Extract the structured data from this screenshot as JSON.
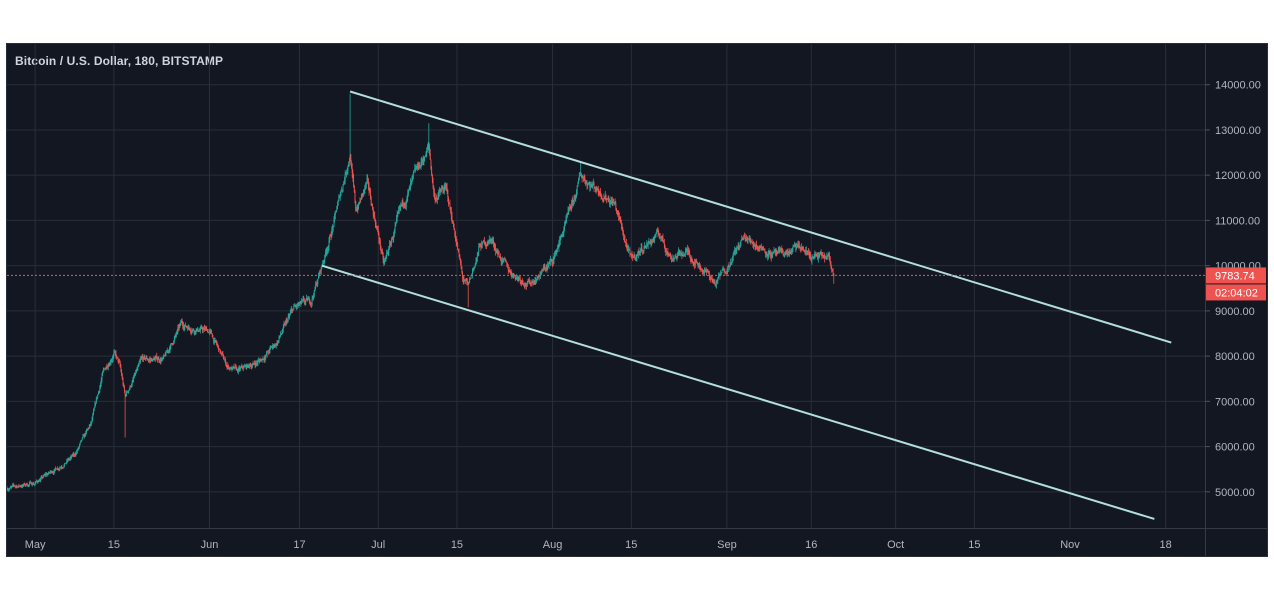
{
  "header": {
    "title": "Bitcoin / U.S. Dollar, 180, BITSTAMP"
  },
  "colors": {
    "background": "#131722",
    "grid": "#2a2e39",
    "up": "#26a69a",
    "down": "#ef5350",
    "trendline": "#b2dfdb",
    "price_line": "#ef5350"
  },
  "chart_data": {
    "type": "candlestick",
    "instrument": "Bitcoin / U.S. Dollar",
    "interval": "180",
    "exchange": "BITSTAMP",
    "y_ticks": [
      "14000.00",
      "13000.00",
      "12000.00",
      "11000.00",
      "10000.00",
      "9000.00",
      "8000.00",
      "7000.00",
      "6000.00",
      "5000.00"
    ],
    "y_tick_values": [
      14000,
      13000,
      12000,
      11000,
      10000,
      9000,
      8000,
      7000,
      6000,
      5000
    ],
    "ylim": [
      4200,
      14900
    ],
    "x_ticks": [
      "May",
      "15",
      "Jun",
      "17",
      "Jul",
      "15",
      "Aug",
      "15",
      "Sep",
      "16",
      "Oct",
      "15",
      "Nov",
      "18"
    ],
    "x_tick_dates": [
      "2019-05-01",
      "2019-05-15",
      "2019-06-01",
      "2019-06-17",
      "2019-07-01",
      "2019-07-15",
      "2019-08-01",
      "2019-08-15",
      "2019-09-01",
      "2019-09-16",
      "2019-10-01",
      "2019-10-15",
      "2019-11-01",
      "2019-11-18"
    ],
    "xlim": [
      "2019-04-26",
      "2019-11-25"
    ],
    "price_path": [
      [
        "2019-04-26",
        5080
      ],
      [
        "2019-05-01",
        5200
      ],
      [
        "2019-05-04",
        5450
      ],
      [
        "2019-05-08",
        5800
      ],
      [
        "2019-05-11",
        6500
      ],
      [
        "2019-05-13",
        7600
      ],
      [
        "2019-05-15",
        8100
      ],
      [
        "2019-05-16",
        7800
      ],
      [
        "2019-05-17",
        7100
      ],
      [
        "2019-05-20",
        7900
      ],
      [
        "2019-05-24",
        7950
      ],
      [
        "2019-05-27",
        8700
      ],
      [
        "2019-05-30",
        8600
      ],
      [
        "2019-06-01",
        8550
      ],
      [
        "2019-06-04",
        7800
      ],
      [
        "2019-06-06",
        7650
      ],
      [
        "2019-06-10",
        7900
      ],
      [
        "2019-06-13",
        8300
      ],
      [
        "2019-06-16",
        9050
      ],
      [
        "2019-06-19",
        9200
      ],
      [
        "2019-06-21",
        10000
      ],
      [
        "2019-06-23",
        10900
      ],
      [
        "2019-06-26",
        12500
      ],
      [
        "2019-06-27",
        11200
      ],
      [
        "2019-06-29",
        11800
      ],
      [
        "2019-07-01",
        10700
      ],
      [
        "2019-07-02",
        10000
      ],
      [
        "2019-07-05",
        11200
      ],
      [
        "2019-07-08",
        12100
      ],
      [
        "2019-07-10",
        12600
      ],
      [
        "2019-07-11",
        11500
      ],
      [
        "2019-07-13",
        11700
      ],
      [
        "2019-07-15",
        10500
      ],
      [
        "2019-07-16",
        9700
      ],
      [
        "2019-07-17",
        9500
      ],
      [
        "2019-07-19",
        10400
      ],
      [
        "2019-07-21",
        10600
      ],
      [
        "2019-07-24",
        9900
      ],
      [
        "2019-07-28",
        9600
      ],
      [
        "2019-08-01",
        10100
      ],
      [
        "2019-08-03",
        10800
      ],
      [
        "2019-08-05",
        11500
      ],
      [
        "2019-08-06",
        12000
      ],
      [
        "2019-08-09",
        11700
      ],
      [
        "2019-08-12",
        11400
      ],
      [
        "2019-08-14",
        10500
      ],
      [
        "2019-08-15",
        10100
      ],
      [
        "2019-08-17",
        10400
      ],
      [
        "2019-08-20",
        10700
      ],
      [
        "2019-08-22",
        10200
      ],
      [
        "2019-08-25",
        10300
      ],
      [
        "2019-08-28",
        9900
      ],
      [
        "2019-08-30",
        9600
      ],
      [
        "2019-09-02",
        10200
      ],
      [
        "2019-09-04",
        10600
      ],
      [
        "2019-09-06",
        10500
      ],
      [
        "2019-09-10",
        10200
      ],
      [
        "2019-09-12",
        10300
      ],
      [
        "2019-09-14",
        10400
      ],
      [
        "2019-09-16",
        10200
      ],
      [
        "2019-09-19",
        10150
      ],
      [
        "2019-09-20",
        9783.74
      ]
    ],
    "extremes": [
      [
        "2019-05-17",
        6200
      ],
      [
        "2019-06-26",
        13800
      ],
      [
        "2019-07-10",
        13150
      ],
      [
        "2019-07-17",
        9080
      ],
      [
        "2019-08-06",
        12300
      ],
      [
        "2019-09-20",
        9600
      ]
    ],
    "last_price": "9783.74",
    "countdown": "02:04:02",
    "trendlines": [
      {
        "name": "upper",
        "points": [
          [
            "2019-06-26",
            13850
          ],
          [
            "2019-11-19",
            8300
          ]
        ]
      },
      {
        "name": "lower",
        "points": [
          [
            "2019-06-21",
            10000
          ],
          [
            "2019-11-16",
            4400
          ]
        ]
      }
    ]
  }
}
